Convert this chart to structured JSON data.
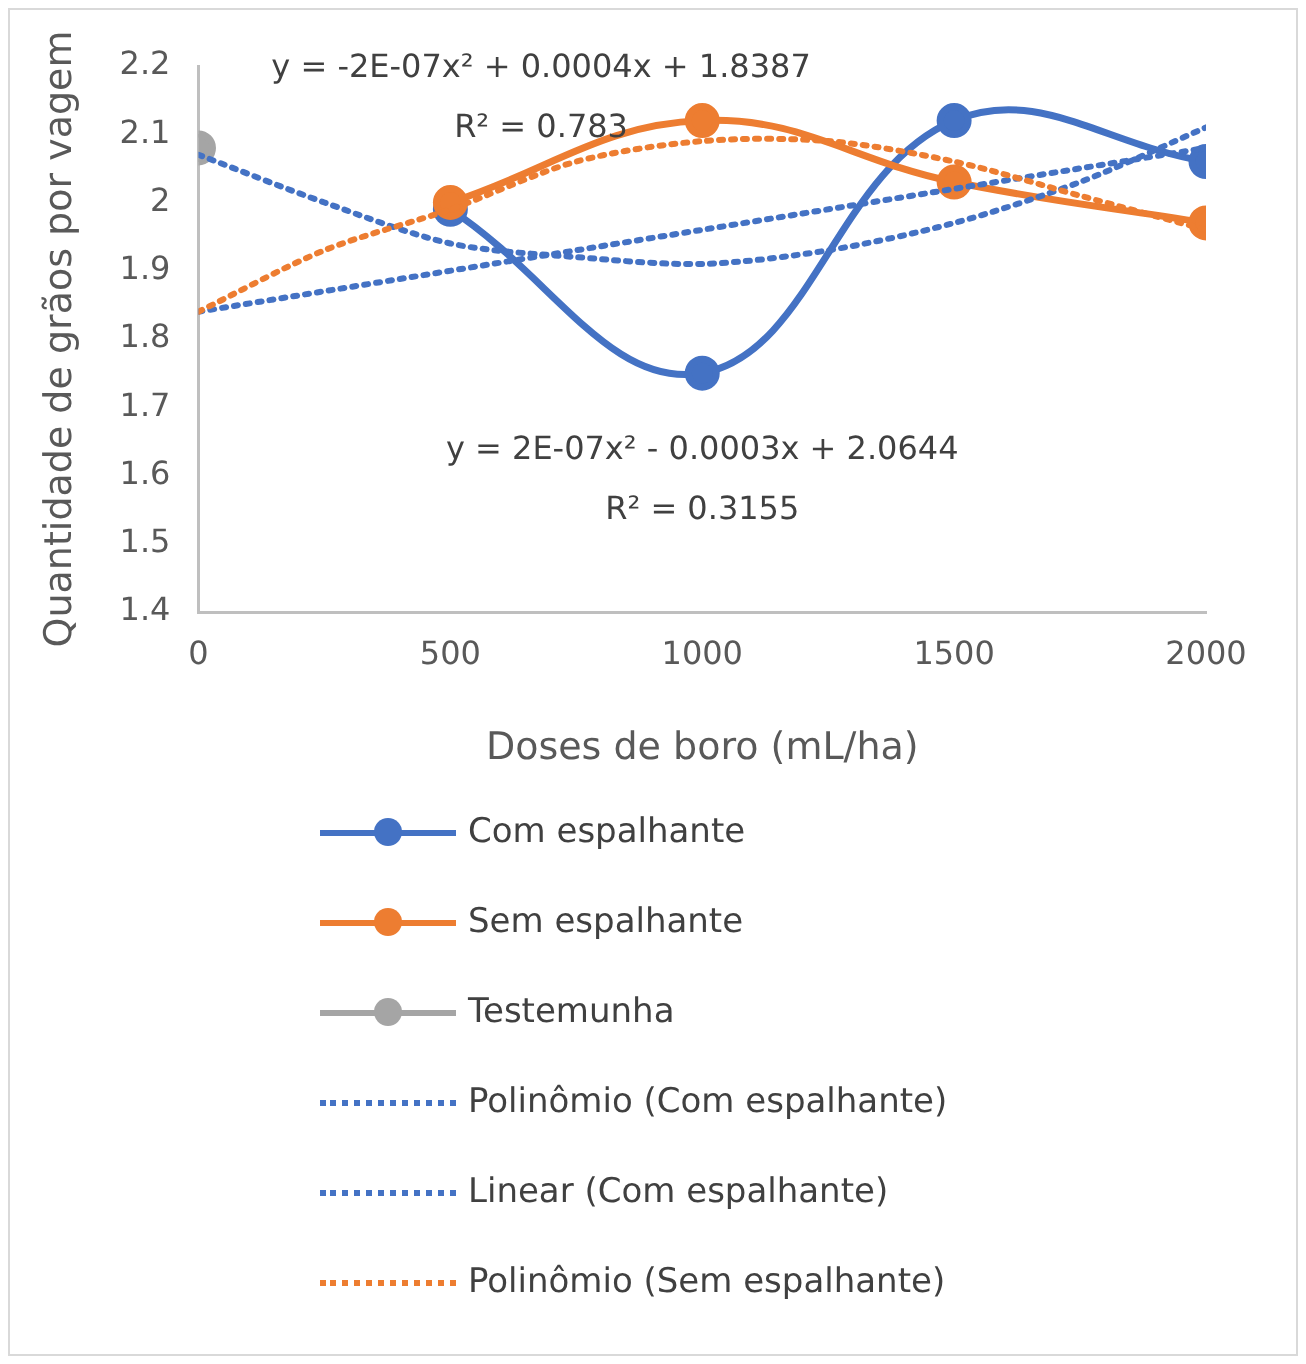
{
  "chart_data": {
    "type": "line",
    "xlabel": "Doses de boro (mL/ha)",
    "ylabel": "Quantidade de grãos por vagem",
    "xlim": [
      0,
      2000
    ],
    "xticks": [
      0,
      500,
      1000,
      1500,
      2000
    ],
    "ylim": [
      1.4,
      2.2
    ],
    "yticks": [
      1.4,
      1.5,
      1.6,
      1.7,
      1.8,
      1.9,
      2,
      2.1,
      2.2
    ],
    "grid": false,
    "legend": "bottom",
    "series": [
      {
        "name": "Com espalhante",
        "color": "#4472c4",
        "marker": "circle",
        "line_style": "solid",
        "x": [
          500,
          1000,
          1500,
          2000
        ],
        "values": [
          1.99,
          1.75,
          2.12,
          2.06
        ]
      },
      {
        "name": "Sem espalhante",
        "color": "#ed7d31",
        "marker": "circle",
        "line_style": "solid",
        "x": [
          500,
          1000,
          1500,
          2000
        ],
        "values": [
          2.0,
          2.12,
          2.03,
          1.97
        ]
      },
      {
        "name": "Testemunha",
        "color": "#a5a5a5",
        "marker": "circle",
        "line_style": "solid",
        "x": [
          0
        ],
        "values": [
          2.08
        ]
      },
      {
        "name": "Polinômio (Com espalhante)",
        "color": "#4472c4",
        "marker": "none",
        "line_style": "dotted",
        "x": [
          0,
          250,
          500,
          750,
          1000,
          1250,
          1500,
          1750,
          2000
        ],
        "values": [
          2.07,
          2.0,
          1.94,
          1.92,
          1.91,
          1.93,
          1.97,
          2.03,
          2.11
        ]
      },
      {
        "name": "Linear (Com espalhante)",
        "color": "#4472c4",
        "marker": "none",
        "line_style": "dotted",
        "x": [
          0,
          1000,
          2000
        ],
        "values": [
          1.84,
          1.96,
          2.08
        ]
      },
      {
        "name": "Polinômio (Sem espalhante)",
        "color": "#ed7d31",
        "marker": "none",
        "line_style": "dotted",
        "x": [
          0,
          250,
          500,
          750,
          1000,
          1250,
          1500,
          1750,
          2000
        ],
        "values": [
          1.84,
          1.93,
          1.99,
          2.06,
          2.09,
          2.09,
          2.06,
          2.01,
          1.96
        ]
      }
    ],
    "annotations": [
      "y = -2E-07x² + 0.0004x + 1.8387\nR² = 0.783",
      "y = 2E-07x² - 0.0003x + 2.0644\nR² = 0.3155"
    ]
  }
}
